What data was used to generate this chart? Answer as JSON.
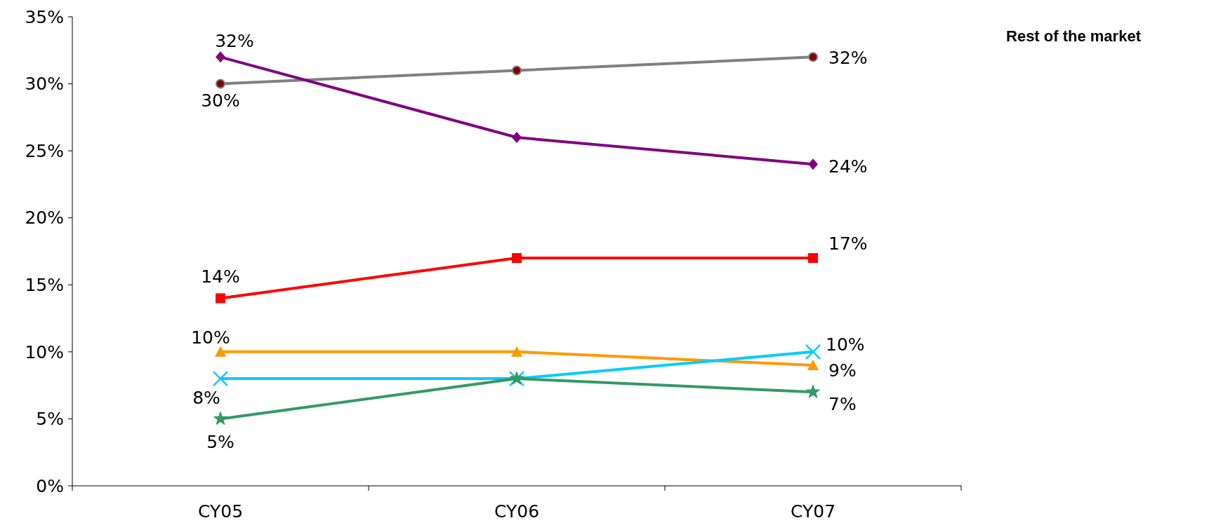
{
  "chart_data": {
    "type": "line",
    "categories": [
      "CY05",
      "CY06",
      "CY07"
    ],
    "ylim": [
      0,
      35
    ],
    "yticks": [
      {
        "value": 0,
        "label": "0%"
      },
      {
        "value": 5,
        "label": "5%"
      },
      {
        "value": 10,
        "label": "10%"
      },
      {
        "value": 15,
        "label": "15%"
      },
      {
        "value": 20,
        "label": "20%"
      },
      {
        "value": 25,
        "label": "25%"
      },
      {
        "value": 30,
        "label": "30%"
      },
      {
        "value": 35,
        "label": "35%"
      }
    ],
    "grid": false,
    "legend": "right",
    "series": [
      {
        "name": "Rest of the market",
        "color": "#808080",
        "marker": "circle",
        "values": [
          30,
          31,
          32
        ],
        "value_labels": [
          "30%",
          null,
          "32%"
        ]
      },
      {
        "color": "#800080",
        "marker": "diamond",
        "values": [
          32,
          26,
          24
        ],
        "value_labels": [
          "32%",
          null,
          "24%"
        ]
      },
      {
        "color": "#ff0000",
        "marker": "square",
        "values": [
          14,
          17,
          17
        ],
        "value_labels": [
          "14%",
          null,
          "17%"
        ]
      },
      {
        "color": "#ff9900",
        "marker": "triangle",
        "values": [
          10,
          10,
          9
        ],
        "value_labels": [
          "10%",
          null,
          "9%"
        ]
      },
      {
        "color": "#00ccff",
        "marker": "cross",
        "values": [
          8,
          8,
          10
        ],
        "value_labels": [
          "8%",
          null,
          "10%"
        ]
      },
      {
        "color": "#339966",
        "marker": "star",
        "values": [
          5,
          8,
          7
        ],
        "value_labels": [
          "5%",
          null,
          "7%"
        ]
      }
    ]
  }
}
